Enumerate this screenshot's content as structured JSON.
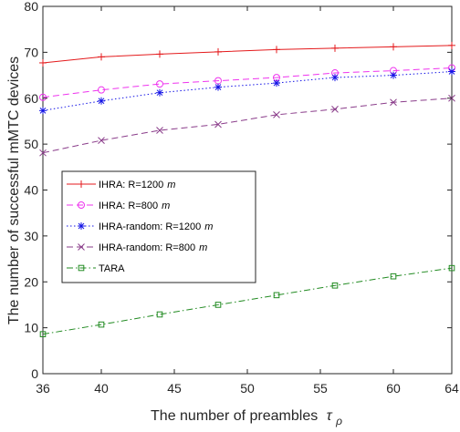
{
  "chart_data": {
    "type": "line",
    "xlabel": "The number of preambles",
    "xlabel_symbol": "τ",
    "xlabel_subscript": "ρ",
    "ylabel": "The number of successful mMTC devices",
    "x": [
      36,
      40,
      44,
      48,
      52,
      56,
      60,
      64
    ],
    "x_ticks": [
      "36",
      "40",
      "45",
      "50",
      "55",
      "60",
      "64"
    ],
    "x_tick_values": [
      36,
      40,
      45,
      50,
      55,
      60,
      64
    ],
    "y_ticks": [
      "0",
      "10",
      "20",
      "30",
      "40",
      "50",
      "60",
      "70",
      "80"
    ],
    "y_tick_values": [
      0,
      10,
      20,
      30,
      40,
      50,
      60,
      70,
      80
    ],
    "xlim": [
      36,
      64
    ],
    "ylim": [
      0,
      80
    ],
    "grid": false,
    "legend_position": "middle-left",
    "series": [
      {
        "name": "IHRA: R=1200",
        "unit": "m",
        "color": "#e41a1c",
        "marker": "plus",
        "dash": "solid",
        "values": [
          67.7,
          69.0,
          69.6,
          70.1,
          70.6,
          70.9,
          71.2,
          71.5
        ]
      },
      {
        "name": "IHRA: R=800",
        "unit": "m",
        "color": "#ee33ee",
        "marker": "circle",
        "dash": "dashed",
        "values": [
          60.2,
          61.8,
          63.1,
          63.8,
          64.5,
          65.5,
          66.0,
          66.6
        ]
      },
      {
        "name": "IHRA-random: R=1200",
        "unit": "m",
        "color": "#1515e6",
        "marker": "asterisk",
        "dash": "dotted",
        "values": [
          57.3,
          59.4,
          61.2,
          62.4,
          63.3,
          64.5,
          65.0,
          65.8
        ]
      },
      {
        "name": "IHRA-random: R=800",
        "unit": "m",
        "color": "#8a3c8a",
        "marker": "x",
        "dash": "dashed",
        "values": [
          48.1,
          50.8,
          53.0,
          54.3,
          56.4,
          57.6,
          59.1,
          60.0
        ]
      },
      {
        "name": "TARA",
        "unit": "",
        "color": "#228b22",
        "marker": "square",
        "dash": "dashdot",
        "values": [
          8.6,
          10.7,
          12.9,
          15.0,
          17.1,
          19.2,
          21.2,
          23.0
        ]
      }
    ]
  }
}
